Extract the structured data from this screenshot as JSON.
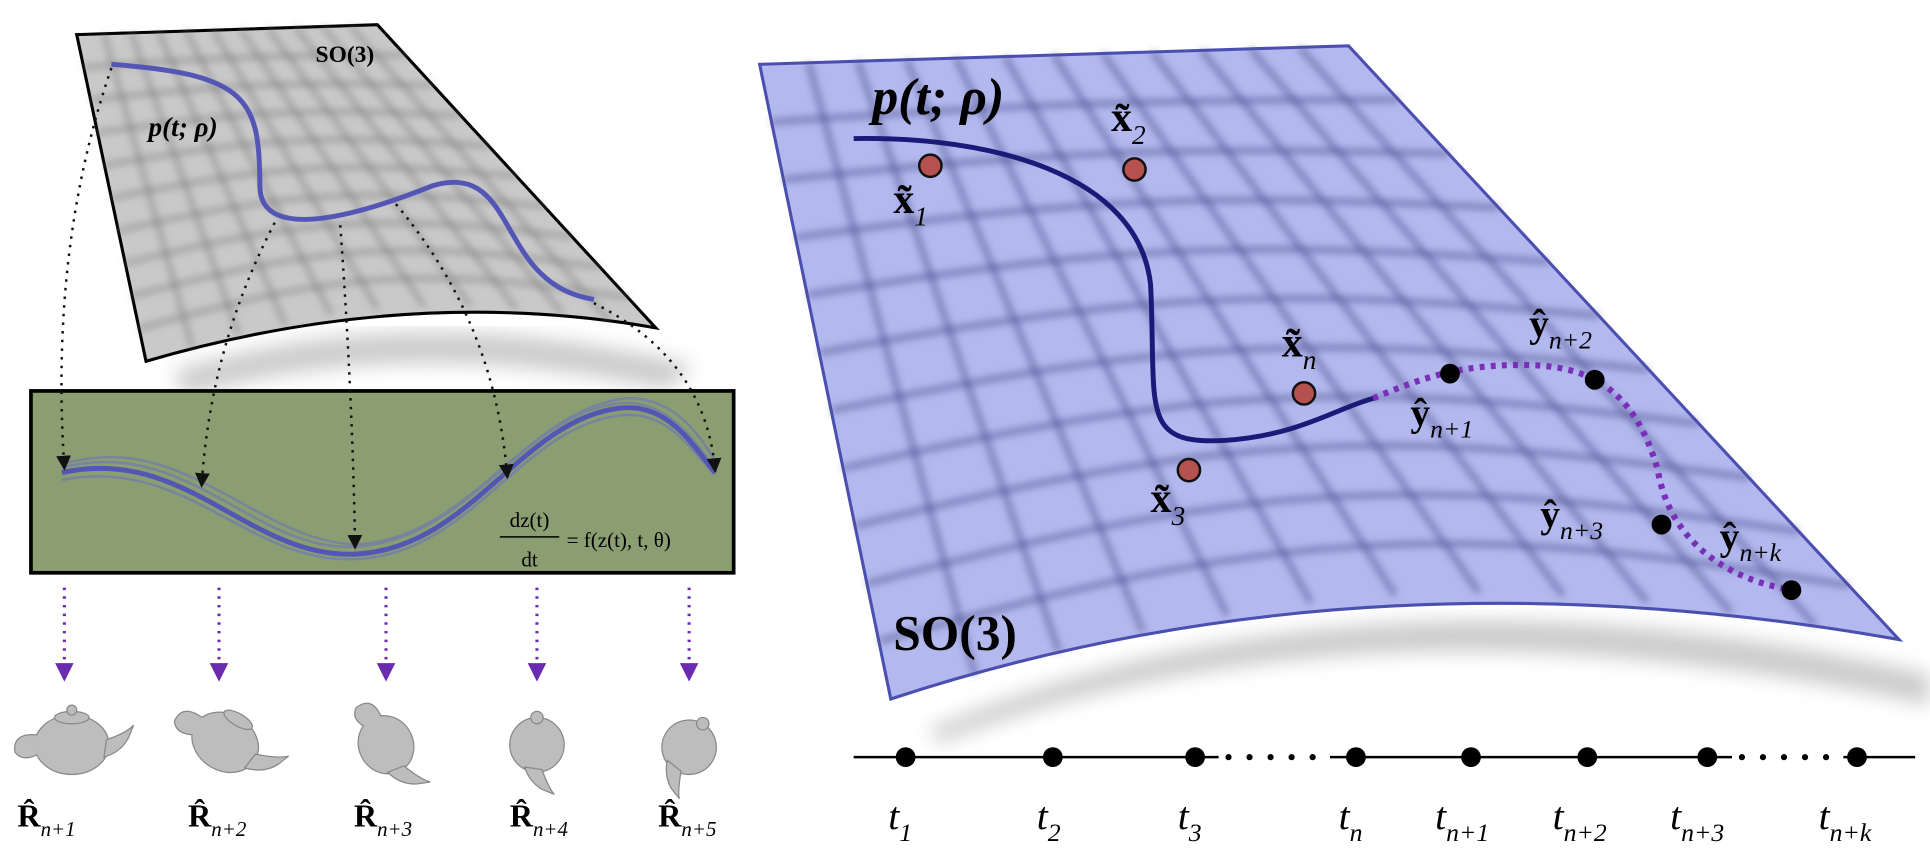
{
  "left_panel": {
    "manifold_label": "SO(3)",
    "curve_label": "p(t; ρ)",
    "equation": {
      "numerator": "dz(t)",
      "denominator": "dt",
      "rhs": "= f(z(t), t, θ)"
    },
    "rotations": [
      {
        "symbol": "R̂",
        "sub": "n+1"
      },
      {
        "symbol": "R̂",
        "sub": "n+2"
      },
      {
        "symbol": "R̂",
        "sub": "n+3"
      },
      {
        "symbol": "R̂",
        "sub": "n+4"
      },
      {
        "symbol": "R̂",
        "sub": "n+5"
      }
    ]
  },
  "right_panel": {
    "curve_label": "p(t; ρ)",
    "manifold_label": "SO(3)",
    "observations": [
      {
        "symbol": "x̃",
        "sub": "1"
      },
      {
        "symbol": "x̃",
        "sub": "2"
      },
      {
        "symbol": "x̃",
        "sub": "3"
      },
      {
        "symbol": "x̃",
        "sub": "n"
      }
    ],
    "predictions": [
      {
        "symbol": "ŷ",
        "sub": "n+1"
      },
      {
        "symbol": "ŷ",
        "sub": "n+2"
      },
      {
        "symbol": "ŷ",
        "sub": "n+3"
      },
      {
        "symbol": "ŷ",
        "sub": "n+k"
      }
    ],
    "timeline": [
      {
        "symbol": "t",
        "sub": "1"
      },
      {
        "symbol": "t",
        "sub": "2"
      },
      {
        "symbol": "t",
        "sub": "3"
      },
      {
        "symbol": "t",
        "sub": "n"
      },
      {
        "symbol": "t",
        "sub": "n+1"
      },
      {
        "symbol": "t",
        "sub": "n+2"
      },
      {
        "symbol": "t",
        "sub": "n+3"
      },
      {
        "symbol": "t",
        "sub": "n+k"
      }
    ]
  }
}
